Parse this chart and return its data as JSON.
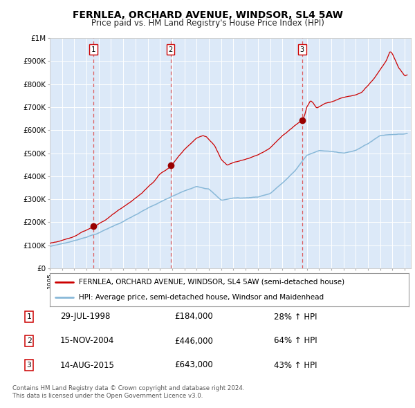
{
  "title": "FERNLEA, ORCHARD AVENUE, WINDSOR, SL4 5AW",
  "subtitle": "Price paid vs. HM Land Registry's House Price Index (HPI)",
  "fig_bg_color": "#ffffff",
  "plot_bg_color": "#dce9f8",
  "grid_color": "#ffffff",
  "red_line_color": "#cc0000",
  "blue_line_color": "#88b8d8",
  "marker_color": "#990000",
  "dashed_color": "#dd4444",
  "ylim": [
    0,
    1000000
  ],
  "yticks": [
    0,
    100000,
    200000,
    300000,
    400000,
    500000,
    600000,
    700000,
    800000,
    900000,
    1000000
  ],
  "ytick_labels": [
    "£0",
    "£100K",
    "£200K",
    "£300K",
    "£400K",
    "£500K",
    "£600K",
    "£700K",
    "£800K",
    "£900K",
    "£1M"
  ],
  "sale1": {
    "date_str": "29-JUL-1998",
    "year": 1998.57,
    "price": 184000,
    "label": "1",
    "hpi_pct": "28% ↑ HPI"
  },
  "sale2": {
    "date_str": "15-NOV-2004",
    "year": 2004.87,
    "price": 446000,
    "label": "2",
    "hpi_pct": "64% ↑ HPI"
  },
  "sale3": {
    "date_str": "14-AUG-2015",
    "year": 2015.62,
    "price": 643000,
    "label": "3",
    "hpi_pct": "43% ↑ HPI"
  },
  "legend_line1": "FERNLEA, ORCHARD AVENUE, WINDSOR, SL4 5AW (semi-detached house)",
  "legend_line2": "HPI: Average price, semi-detached house, Windsor and Maidenhead",
  "footer1": "Contains HM Land Registry data © Crown copyright and database right 2024.",
  "footer2": "This data is licensed under the Open Government Licence v3.0."
}
